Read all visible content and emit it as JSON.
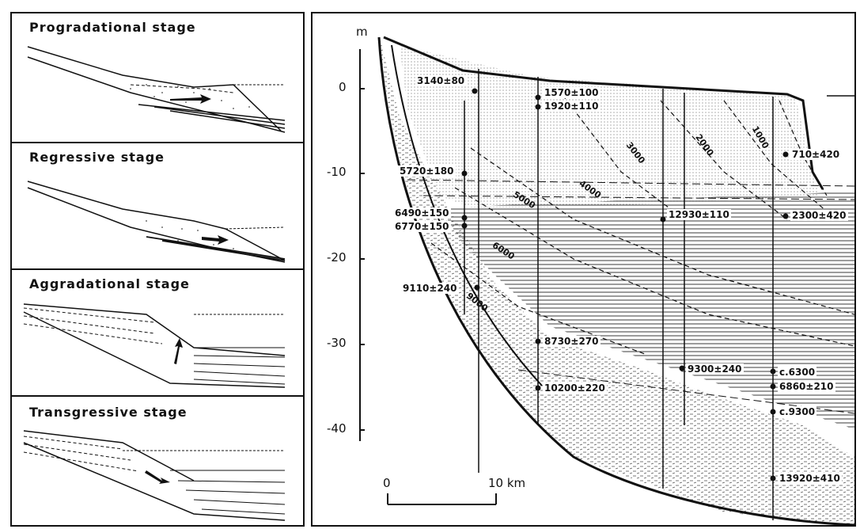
{
  "stages": [
    {
      "title": "Progradational stage"
    },
    {
      "title": "Regressive stage"
    },
    {
      "title": "Aggradational stage"
    },
    {
      "title": "Transgressive stage"
    }
  ],
  "section": {
    "depth_unit": "m",
    "depth_ticks": [
      "0",
      "-10",
      "-20",
      "-30",
      "-40"
    ],
    "scale_bar": {
      "start": "0",
      "end": "10 km"
    },
    "isochrones": [
      "1000",
      "2000",
      "3000",
      "4000",
      "5000",
      "6000",
      "9000"
    ],
    "dates": [
      "3140±80",
      "1570±100",
      "1920±110",
      "710±420",
      "5720±180",
      "6490±150",
      "12930±110",
      "2300±420",
      "6770±150",
      "9110±240",
      "8730±270",
      "9300±240",
      "c.6300",
      "6860±210",
      "10200±220",
      "c.9300",
      "13920±410"
    ]
  },
  "colors": {
    "ink": "#111111",
    "paper": "#ffffff",
    "stipple": "#9a9a9a"
  }
}
